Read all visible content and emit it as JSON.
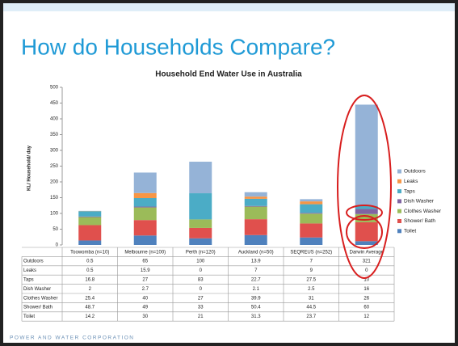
{
  "slide_title": "How do Households Compare?",
  "footer": "POWER AND WATER CORPORATION",
  "chart_data": {
    "type": "stacked_bar",
    "title": "Household End Water Use in Australia",
    "y_label": "KL/ Household/ day",
    "categories": [
      "Toowomba (n=10)",
      "Melbourne (n=100)",
      "Perth (n=120)",
      "Auckland (n=50)",
      "SEQREUS (n=252)",
      "Darwin Average"
    ],
    "series": [
      {
        "name": "Outdoors",
        "color": "#95b3d7",
        "values": [
          0.5,
          65,
          100,
          13.9,
          7,
          321
        ]
      },
      {
        "name": "Leaks",
        "color": "#f79646",
        "values": [
          0.5,
          15.9,
          0,
          7,
          9,
          0
        ]
      },
      {
        "name": "Taps",
        "color": "#4bacc6",
        "values": [
          16.8,
          27,
          83,
          22.7,
          27.5,
          10
        ]
      },
      {
        "name": "Dish Washer",
        "color": "#8064a2",
        "values": [
          2,
          2.7,
          0,
          2.1,
          2.5,
          16
        ]
      },
      {
        "name": "Clothes Washer",
        "color": "#9bbb59",
        "values": [
          25.4,
          40,
          27,
          39.9,
          31,
          26
        ]
      },
      {
        "name": "Shower/ Bath",
        "color": "#e0504d",
        "values": [
          48.7,
          49,
          33,
          50.4,
          44.5,
          60
        ]
      },
      {
        "name": "Toilet",
        "color": "#4f81bd",
        "values": [
          14.2,
          30,
          21,
          31.3,
          23.7,
          12
        ]
      }
    ],
    "ylim": [
      0,
      500
    ],
    "yticks": [
      0,
      50,
      100,
      150,
      200,
      250,
      300,
      350,
      400,
      450,
      500
    ],
    "grid": false,
    "legend": "right"
  }
}
